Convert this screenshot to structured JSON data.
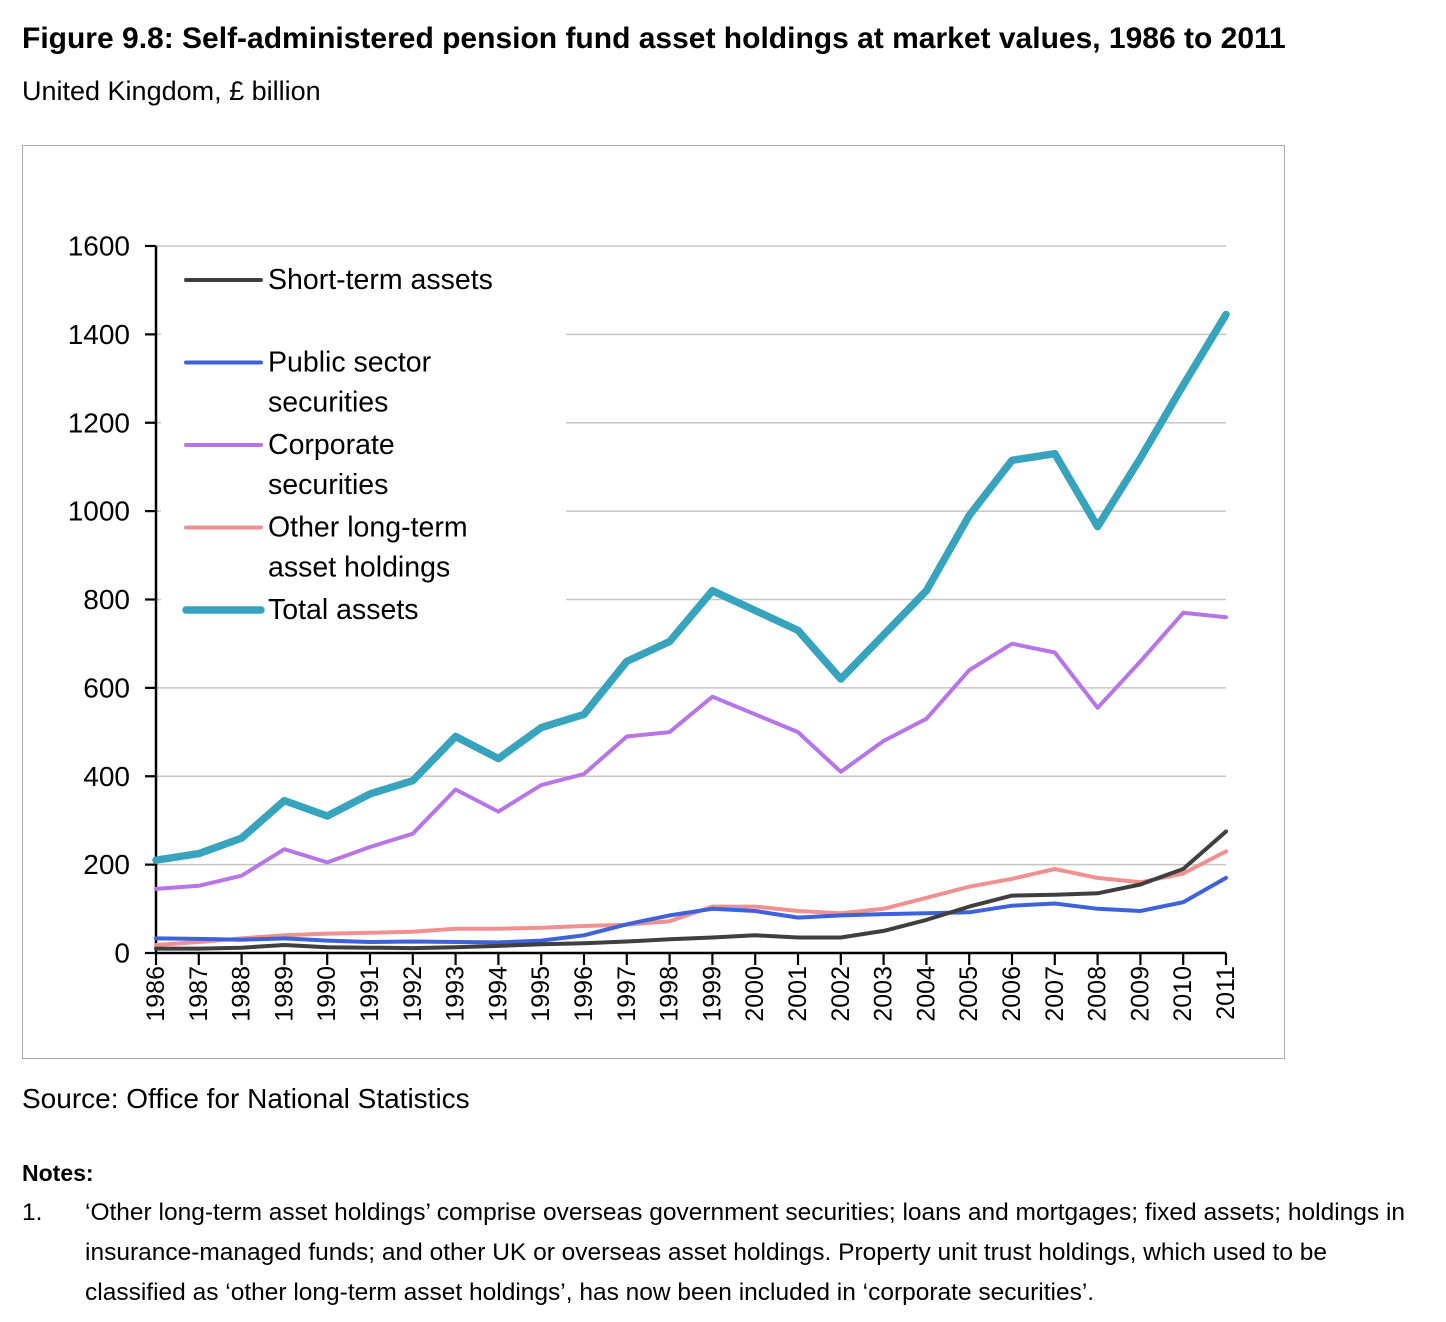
{
  "header": {
    "title": "Figure 9.8: Self-administered pension fund asset holdings at market values, 1986 to 2011",
    "subtitle": "United Kingdom, £ billion"
  },
  "chart_data": {
    "type": "line",
    "title": "",
    "xlabel": "",
    "ylabel": "",
    "x": [
      1986,
      1987,
      1988,
      1989,
      1990,
      1991,
      1992,
      1993,
      1994,
      1995,
      1996,
      1997,
      1998,
      1999,
      2000,
      2001,
      2002,
      2003,
      2004,
      2005,
      2006,
      2007,
      2008,
      2009,
      2010,
      2011
    ],
    "ylim": [
      0,
      1600
    ],
    "ytick_step": 200,
    "grid": true,
    "gridline_color": "#c6c6c6",
    "axis_color": "#000000",
    "legend_position": "upper-left-inside",
    "series": [
      {
        "name": "Short-term assets",
        "legend_lines": [
          "Short-term assets"
        ],
        "color": "#3f3f3f",
        "width": 4,
        "values": [
          10,
          10,
          12,
          18,
          13,
          12,
          11,
          13,
          16,
          20,
          22,
          26,
          31,
          35,
          40,
          35,
          35,
          50,
          75,
          105,
          130,
          132,
          135,
          155,
          190,
          275
        ]
      },
      {
        "name": "Public sector securities",
        "legend_lines": [
          "Public sector",
          "securities"
        ],
        "color": "#3e62d9",
        "width": 4,
        "values": [
          33,
          32,
          30,
          33,
          28,
          25,
          26,
          25,
          24,
          28,
          40,
          65,
          85,
          100,
          95,
          80,
          85,
          88,
          90,
          92,
          107,
          112,
          100,
          95,
          115,
          170
        ]
      },
      {
        "name": "Corporate securities",
        "legend_lines": [
          "Corporate",
          "securities"
        ],
        "color": "#b776e8",
        "width": 4,
        "values": [
          145,
          152,
          175,
          235,
          205,
          240,
          270,
          370,
          320,
          380,
          405,
          490,
          500,
          580,
          540,
          500,
          410,
          480,
          530,
          640,
          700,
          680,
          555,
          660,
          770,
          760
        ]
      },
      {
        "name": "Other long-term asset holdings",
        "legend_lines": [
          "Other long-term",
          "asset holdings"
        ],
        "color": "#f09090",
        "width": 4,
        "values": [
          18,
          25,
          33,
          40,
          44,
          46,
          48,
          55,
          55,
          57,
          61,
          64,
          72,
          105,
          105,
          95,
          90,
          100,
          125,
          150,
          168,
          190,
          170,
          160,
          180,
          230
        ]
      },
      {
        "name": "Total assets",
        "legend_lines": [
          "Total assets"
        ],
        "color": "#38a3bc",
        "width": 7.5,
        "values": [
          210,
          225,
          260,
          345,
          310,
          360,
          390,
          490,
          440,
          510,
          540,
          660,
          705,
          820,
          775,
          730,
          620,
          720,
          820,
          990,
          1115,
          1130,
          965,
          1120,
          1285,
          1445
        ]
      }
    ]
  },
  "source": "Source: Office for National Statistics",
  "notes": {
    "heading": "Notes:",
    "items": [
      {
        "number": "1.",
        "text": "‘Other long-term asset holdings’ comprise overseas government securities; loans and mortgages; fixed assets; holdings in insurance-managed funds; and other UK or overseas asset holdings. Property unit trust holdings, which used to be classified as ‘other long-term asset holdings’, has now been included in ‘corporate securities’."
      }
    ]
  }
}
